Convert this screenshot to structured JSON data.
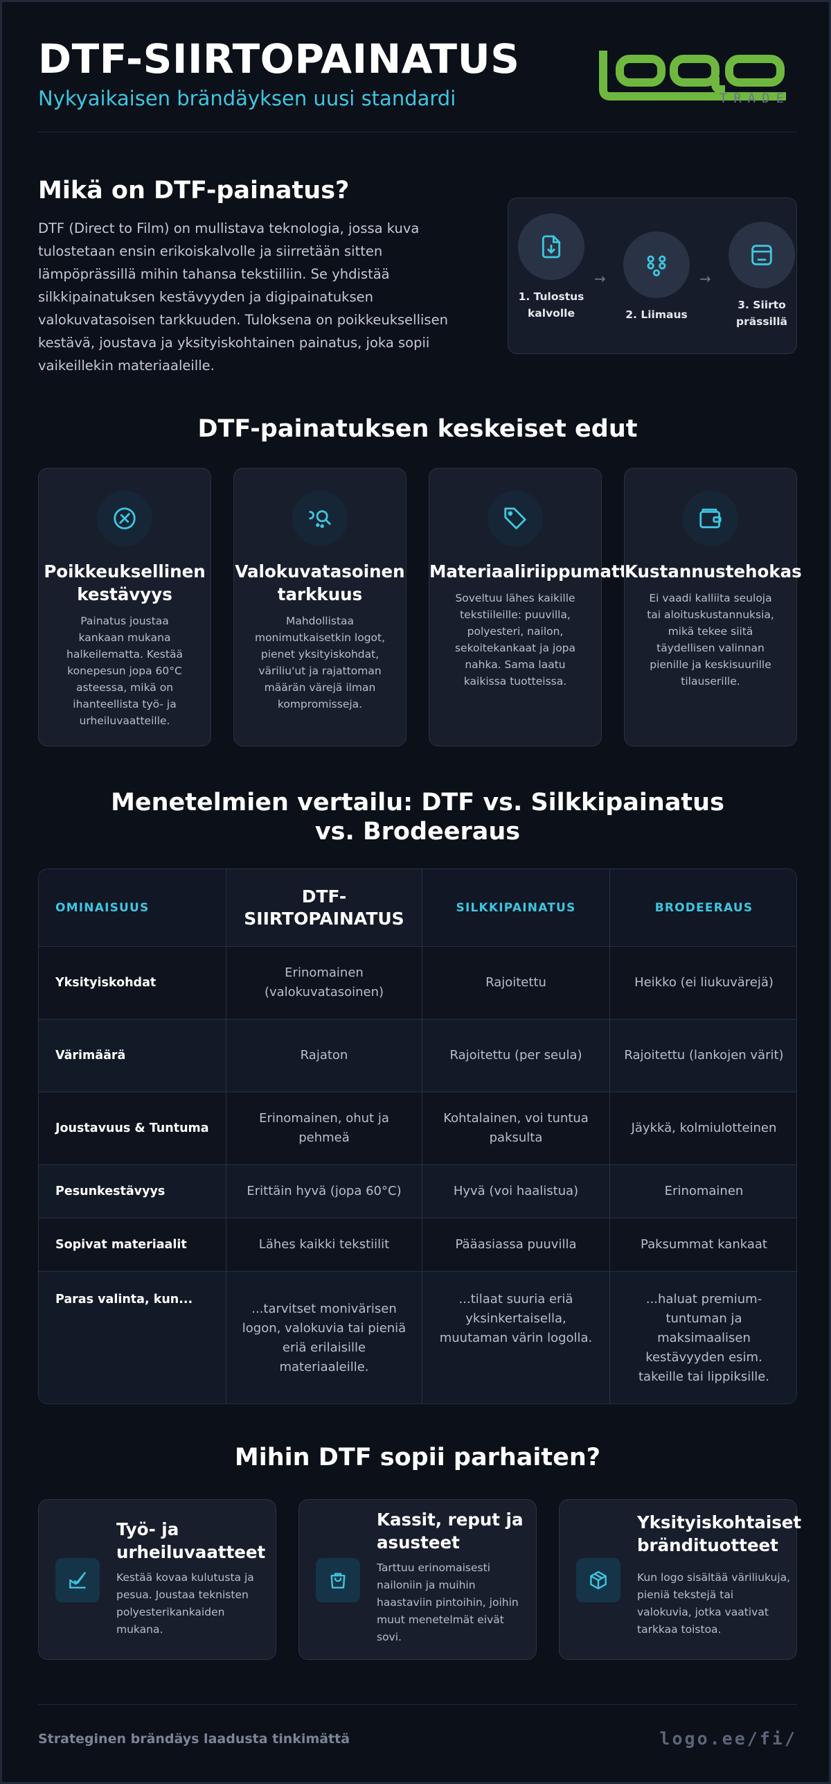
{
  "header": {
    "title": "DTF-SIIRTOPAINATUS",
    "subtitle": "Nykyaikaisen brändäyksen uusi standardi",
    "logo_text": "logo",
    "logo_sub": "TRADE"
  },
  "what": {
    "heading": "Mikä on DTF-painatus?",
    "text": "DTF (Direct to Film) on mullistava teknologia, jossa kuva tulostetaan ensin erikoiskalvolle ja siirretään sitten lämpöprässillä mihin tahansa tekstiiliin. Se yhdistää silkkipainatuksen kestävyyden ja digipainatuksen valokuvatasoisen tarkkuuden. Tuloksena on poikkeuksellisen kestävä, joustava ja yksityiskohtainen painatus, joka sopii vaikeillekin materiaaleille.",
    "steps": [
      {
        "label": "1. Tulostus kalvolle",
        "icon": "file-download-icon"
      },
      {
        "label": "2. Liimaus",
        "icon": "adhesive-dots-icon"
      },
      {
        "label": "3. Siirto prässillä",
        "icon": "press-icon"
      }
    ],
    "arrow": "→"
  },
  "benefits": {
    "heading": "DTF-painatuksen keskeiset edut",
    "items": [
      {
        "title": "Poikkeuksellinen kestävyys",
        "text": "Painatus joustaa kankaan mukana halkeilematta. Kestää konepesun jopa 60°C asteessa, mikä on ihanteellista työ- ja urheiluvaatteille.",
        "icon": "compass-icon"
      },
      {
        "title": "Valokuvatasoinen tarkkuus",
        "text": "Mahdollistaa monimutkaisetkin logot, pienet yksityiskohdat, väriliu'ut ja rajattoman määrän värejä ilman kompromisseja.",
        "icon": "magnifier-icon"
      },
      {
        "title": "Materiaaliriippumattomuus",
        "text": "Soveltuu lähes kaikille tekstiileille: puuvilla, polyesteri, nailon, sekoitekankaat ja jopa nahka. Sama laatu kaikissa tuotteissa.",
        "icon": "tag-icon"
      },
      {
        "title": "Kustannustehokas",
        "text": "Ei vaadi kalliita seuloja tai aloituskustannuksia, mikä tekee siitä täydellisen valinnan pienille ja keskisuurille tilauserille.",
        "icon": "wallet-icon"
      }
    ]
  },
  "comparison": {
    "heading": "Menetelmien vertailu: DTF vs. Silkkipainatus vs. Brodeeraus",
    "headers": [
      "OMINAISUUS",
      "DTF-SIIRTOPAINATUS",
      "SILKKIPAINATUS",
      "BRODEERAUS"
    ],
    "rows": [
      [
        "Yksityiskohdat",
        "Erinomainen (valokuvatasoinen)",
        "Rajoitettu",
        "Heikko (ei liukuvärejä)"
      ],
      [
        "Värimäärä",
        "Rajaton",
        "Rajoitettu (per seula)",
        "Rajoitettu (lankojen värit)"
      ],
      [
        "Joustavuus & Tuntuma",
        "Erinomainen, ohut ja pehmeä",
        "Kohtalainen, voi tuntua paksulta",
        "Jäykkä, kolmiulotteinen"
      ],
      [
        "Pesunkestävyys",
        "Erittäin hyvä (jopa 60°C)",
        "Hyvä (voi haalistua)",
        "Erinomainen"
      ],
      [
        "Sopivat materiaalit",
        "Lähes kaikki tekstiilit",
        "Pääasiassa puuvilla",
        "Paksummat kankaat"
      ],
      [
        "Paras valinta, kun...",
        "...tarvitset monivärisen logon, valokuvia tai pieniä eriä erilaisille materiaaleille.",
        "...tilaat suuria eriä yksinkertaisella, muutaman värin logolla.",
        "...haluat premium-tuntuman ja maksimaalisen kestävyyden esim. takeille tai lippiksille."
      ]
    ]
  },
  "uses": {
    "heading": "Mihin DTF sopii parhaiten?",
    "items": [
      {
        "title": "Työ- ja urheiluvaatteet",
        "text": "Kestää kovaa kulutusta ja pesua. Joustaa teknisten polyesterikankaiden mukana.",
        "icon": "shirt-check-icon"
      },
      {
        "title": "Kassit, reput ja asusteet",
        "text": "Tarttuu erinomaisesti nailoniin ja muihin haastaviin pintoihin, joihin muut menetelmät eivät sovi.",
        "icon": "bag-icon"
      },
      {
        "title": "Yksityiskohtaiset brändituotteet",
        "text": "Kun logo sisältää väriliukuja, pieniä tekstejä tai valokuvia, jotka vaativat tarkkaa toistoa.",
        "icon": "box-icon"
      }
    ]
  },
  "footer": {
    "left": "Strateginen brändäys laadusta tinkimättä",
    "right": "logo.ee/fi/"
  },
  "colors": {
    "background": "#0b1019",
    "accent": "#3fc6df",
    "logo_green": "#6fb83f",
    "card": "#181e2c"
  }
}
